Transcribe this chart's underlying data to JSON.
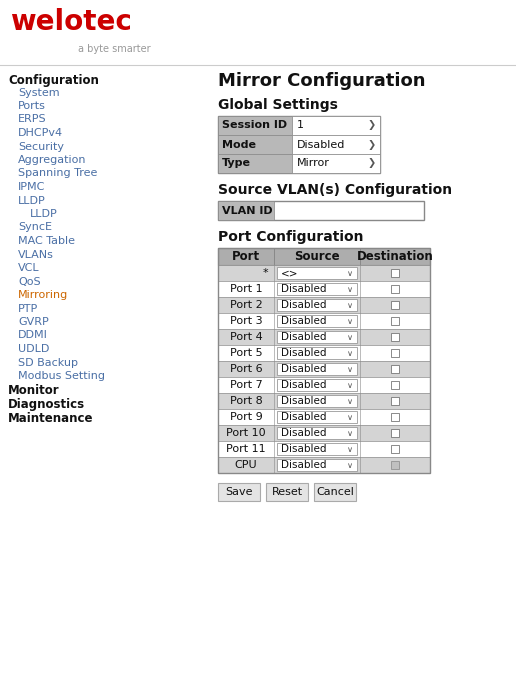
{
  "bg_color": "#ffffff",
  "logo_color": "#cc0000",
  "logo_subtitle_color": "#999999",
  "nav_bold_color": "#111111",
  "nav_link_color": "#4a6fa5",
  "nav_mirroring_color": "#cc6600",
  "main_title": "Mirror Configuration",
  "global_settings_label": "Global Settings",
  "global_rows": [
    {
      "label": "Session ID",
      "value": "1"
    },
    {
      "label": "Mode",
      "value": "Disabled"
    },
    {
      "label": "Type",
      "value": "Mirror"
    }
  ],
  "vlan_label": "Source VLAN(s) Configuration",
  "vlan_id_label": "VLAN ID",
  "port_label": "Port Configuration",
  "port_header": [
    "Port",
    "Source",
    "Destination"
  ],
  "port_rows": [
    {
      "port": "*",
      "source": "<>",
      "cpu": false,
      "shaded": true
    },
    {
      "port": "Port 1",
      "source": "Disabled",
      "cpu": false,
      "shaded": false
    },
    {
      "port": "Port 2",
      "source": "Disabled",
      "cpu": false,
      "shaded": true
    },
    {
      "port": "Port 3",
      "source": "Disabled",
      "cpu": false,
      "shaded": false
    },
    {
      "port": "Port 4",
      "source": "Disabled",
      "cpu": false,
      "shaded": true
    },
    {
      "port": "Port 5",
      "source": "Disabled",
      "cpu": false,
      "shaded": false
    },
    {
      "port": "Port 6",
      "source": "Disabled",
      "cpu": false,
      "shaded": true
    },
    {
      "port": "Port 7",
      "source": "Disabled",
      "cpu": false,
      "shaded": false
    },
    {
      "port": "Port 8",
      "source": "Disabled",
      "cpu": false,
      "shaded": true
    },
    {
      "port": "Port 9",
      "source": "Disabled",
      "cpu": false,
      "shaded": false
    },
    {
      "port": "Port 10",
      "source": "Disabled",
      "cpu": false,
      "shaded": true
    },
    {
      "port": "Port 11",
      "source": "Disabled",
      "cpu": false,
      "shaded": false
    },
    {
      "port": "CPU",
      "source": "Disabled",
      "cpu": true,
      "shaded": true
    }
  ],
  "buttons": [
    "Save",
    "Reset",
    "Cancel"
  ],
  "header_gray": "#adadad",
  "row_shaded": "#d4d4d4",
  "row_white": "#ffffff",
  "border_color": "#888888",
  "label_bg": "#b8b8b8",
  "divider_color": "#cccccc",
  "nav_items": [
    {
      "text": "Configuration",
      "bold": true,
      "indent": 0,
      "color": "#111111"
    },
    {
      "text": "System",
      "bold": false,
      "indent": 1,
      "color": "#4a6fa5"
    },
    {
      "text": "Ports",
      "bold": false,
      "indent": 1,
      "color": "#4a6fa5"
    },
    {
      "text": "ERPS",
      "bold": false,
      "indent": 1,
      "color": "#4a6fa5"
    },
    {
      "text": "DHCPv4",
      "bold": false,
      "indent": 1,
      "color": "#4a6fa5"
    },
    {
      "text": "Security",
      "bold": false,
      "indent": 1,
      "color": "#4a6fa5"
    },
    {
      "text": "Aggregation",
      "bold": false,
      "indent": 1,
      "color": "#4a6fa5"
    },
    {
      "text": "Spanning Tree",
      "bold": false,
      "indent": 1,
      "color": "#4a6fa5"
    },
    {
      "text": "IPMC",
      "bold": false,
      "indent": 1,
      "color": "#4a6fa5"
    },
    {
      "text": "LLDP",
      "bold": false,
      "indent": 1,
      "color": "#4a6fa5"
    },
    {
      "text": "LLDP",
      "bold": false,
      "indent": 2,
      "color": "#4a6fa5"
    },
    {
      "text": "SyncE",
      "bold": false,
      "indent": 1,
      "color": "#4a6fa5"
    },
    {
      "text": "MAC Table",
      "bold": false,
      "indent": 1,
      "color": "#4a6fa5"
    },
    {
      "text": "VLANs",
      "bold": false,
      "indent": 1,
      "color": "#4a6fa5"
    },
    {
      "text": "VCL",
      "bold": false,
      "indent": 1,
      "color": "#4a6fa5"
    },
    {
      "text": "QoS",
      "bold": false,
      "indent": 1,
      "color": "#4a6fa5"
    },
    {
      "text": "Mirroring",
      "bold": false,
      "indent": 1,
      "color": "#cc6600"
    },
    {
      "text": "PTP",
      "bold": false,
      "indent": 1,
      "color": "#4a6fa5"
    },
    {
      "text": "GVRP",
      "bold": false,
      "indent": 1,
      "color": "#4a6fa5"
    },
    {
      "text": "DDMI",
      "bold": false,
      "indent": 1,
      "color": "#4a6fa5"
    },
    {
      "text": "UDLD",
      "bold": false,
      "indent": 1,
      "color": "#4a6fa5"
    },
    {
      "text": "SD Backup",
      "bold": false,
      "indent": 1,
      "color": "#4a6fa5"
    },
    {
      "text": "Modbus Setting",
      "bold": false,
      "indent": 1,
      "color": "#4a6fa5"
    },
    {
      "text": "Monitor",
      "bold": true,
      "indent": 0,
      "color": "#111111"
    },
    {
      "text": "Diagnostics",
      "bold": true,
      "indent": 0,
      "color": "#111111"
    },
    {
      "text": "Maintenance",
      "bold": true,
      "indent": 0,
      "color": "#111111"
    }
  ]
}
